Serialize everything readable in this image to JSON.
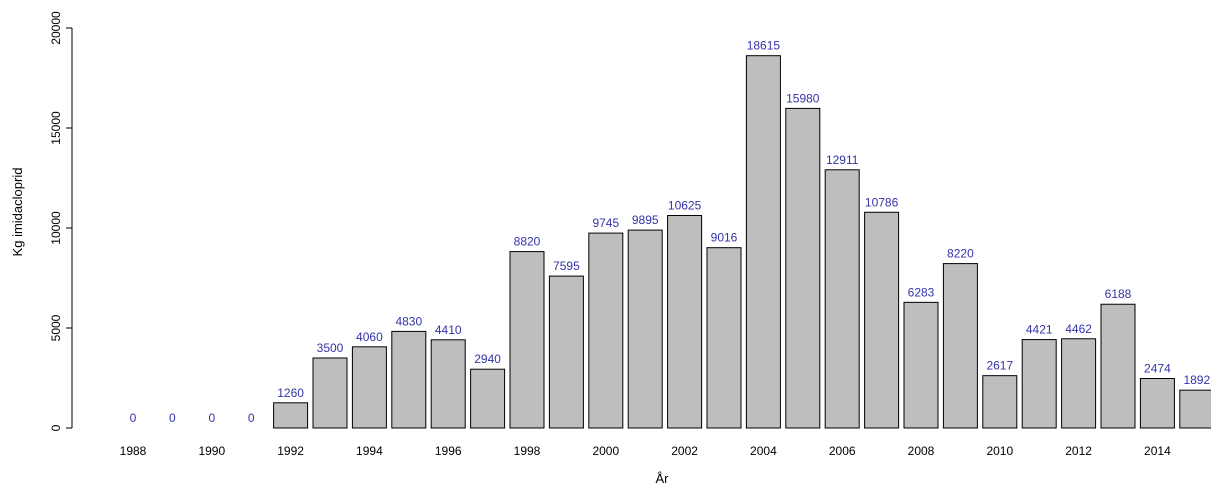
{
  "chart_data": {
    "type": "bar",
    "title": "",
    "xlabel": "År",
    "ylabel": "Kg imidacloprid",
    "ylim": [
      0,
      20000
    ],
    "yticks": [
      0,
      5000,
      10000,
      15000,
      20000
    ],
    "ytick_labels": [
      "0",
      "5000",
      "10000",
      "15000",
      "20000"
    ],
    "categories": [
      "1988",
      "1989",
      "1990",
      "1991",
      "1992",
      "1993",
      "1994",
      "1995",
      "1996",
      "1997",
      "1998",
      "1999",
      "2000",
      "2001",
      "2002",
      "2003",
      "2004",
      "2005",
      "2006",
      "2007",
      "2008",
      "2009",
      "2010",
      "2011",
      "2012",
      "2013",
      "2014",
      "2015"
    ],
    "xtick_labels": [
      "1988",
      "",
      "1990",
      "",
      "1992",
      "",
      "1994",
      "",
      "1996",
      "",
      "1998",
      "",
      "2000",
      "",
      "2002",
      "",
      "2004",
      "",
      "2006",
      "",
      "2008",
      "",
      "2010",
      "",
      "2012",
      "",
      "2014",
      ""
    ],
    "values": [
      0,
      0,
      0,
      0,
      1260,
      3500,
      4060,
      4830,
      4410,
      2940,
      8820,
      7595,
      9745,
      9895,
      10625,
      9016,
      18615,
      15980,
      12911,
      10786,
      6283,
      8220,
      2617,
      4421,
      4462,
      6188,
      2474,
      1892
    ],
    "data_labels": [
      "0",
      "0",
      "0",
      "0",
      "1260",
      "3500",
      "4060",
      "4830",
      "4410",
      "2940",
      "8820",
      "7595",
      "9745",
      "9895",
      "10625",
      "9016",
      "18615",
      "15980",
      "12911",
      "10786",
      "6283",
      "8220",
      "2617",
      "4421",
      "4462",
      "6188",
      "2474",
      "1892"
    ],
    "grid": false,
    "colors": {
      "bar_fill": "#bebebe",
      "bar_stroke": "#000000",
      "label_color": "#3333aa"
    }
  }
}
